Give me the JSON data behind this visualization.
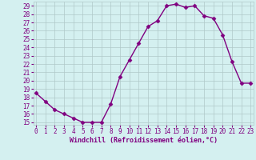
{
  "x": [
    0,
    1,
    2,
    3,
    4,
    5,
    6,
    7,
    8,
    9,
    10,
    11,
    12,
    13,
    14,
    15,
    16,
    17,
    18,
    19,
    20,
    21,
    22,
    23
  ],
  "y": [
    18.5,
    17.5,
    16.5,
    16.0,
    15.5,
    15.0,
    15.0,
    15.0,
    17.2,
    20.5,
    22.5,
    24.5,
    26.5,
    27.2,
    29.0,
    29.2,
    28.8,
    29.0,
    27.8,
    27.5,
    25.5,
    22.3,
    19.7,
    19.7
  ],
  "yticks": [
    15,
    16,
    17,
    18,
    19,
    20,
    21,
    22,
    23,
    24,
    25,
    26,
    27,
    28,
    29
  ],
  "xticks": [
    0,
    1,
    2,
    3,
    4,
    5,
    6,
    7,
    8,
    9,
    10,
    11,
    12,
    13,
    14,
    15,
    16,
    17,
    18,
    19,
    20,
    21,
    22,
    23
  ],
  "xlabel": "Windchill (Refroidissement éolien,°C)",
  "line_color": "#800080",
  "marker": "D",
  "bg_color": "#d4f0f0",
  "grid_color": "#b0c8c8",
  "font_color": "#800080",
  "font_family": "monospace",
  "tick_fontsize": 5.5,
  "xlabel_fontsize": 6.0,
  "linewidth": 1.0,
  "markersize": 2.5
}
